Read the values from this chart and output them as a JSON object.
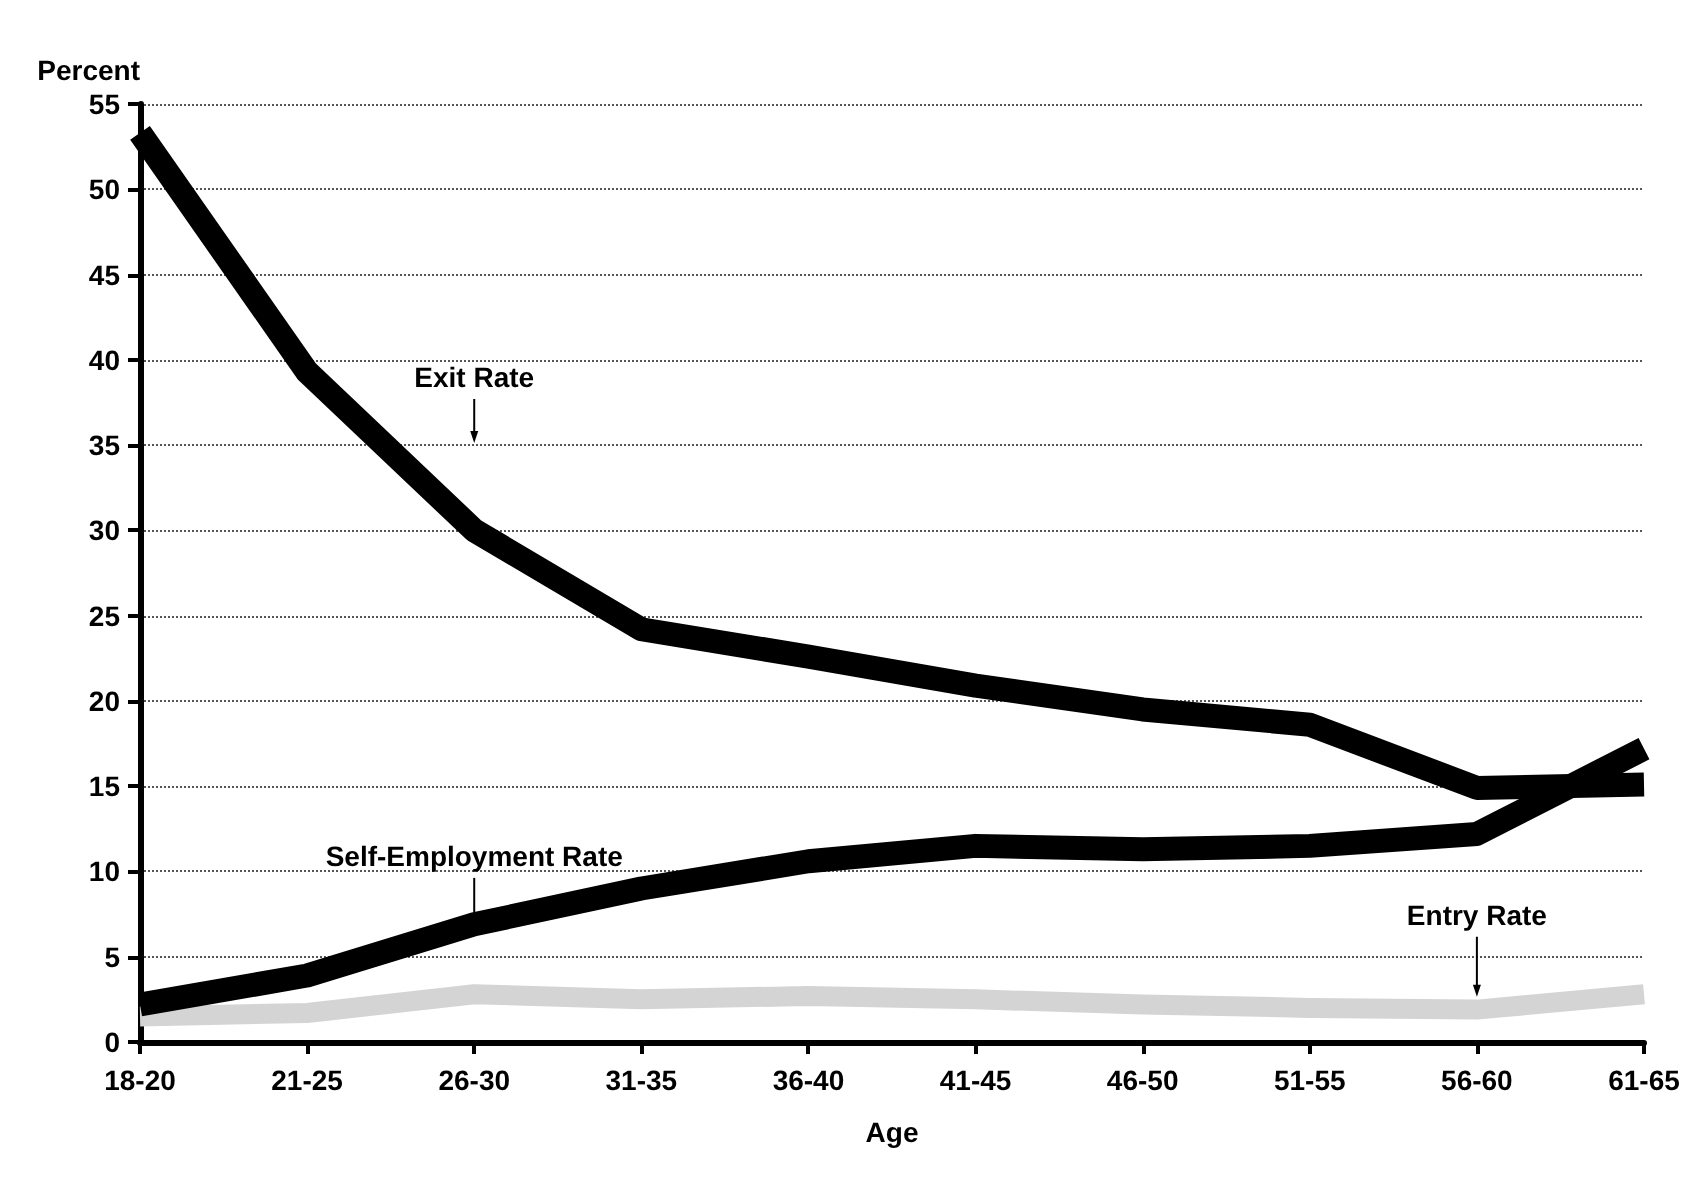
{
  "chart_data": {
    "type": "line",
    "xlabel": "Age",
    "ylabel": "Percent",
    "categories": [
      "18-20",
      "21-25",
      "26-30",
      "31-35",
      "36-40",
      "41-45",
      "46-50",
      "51-55",
      "56-60",
      "61-65"
    ],
    "series": [
      {
        "name": "Exit Rate",
        "color": "#000000",
        "values": [
          53.3,
          39.3,
          30,
          24.2,
          22.6,
          20.9,
          19.5,
          18.6,
          14.9,
          15.1
        ]
      },
      {
        "name": "Self-Employment Rate",
        "color": "#000000",
        "values": [
          2.2,
          3.9,
          6.9,
          9,
          10.6,
          11.5,
          11.3,
          11.5,
          12.2,
          17.2
        ]
      },
      {
        "name": "Entry Rate",
        "color": "#d4d4d4",
        "values": [
          1.5,
          1.7,
          2.8,
          2.5,
          2.7,
          2.5,
          2.2,
          2.0,
          1.9,
          2.8
        ]
      }
    ],
    "ylim": [
      0,
      55
    ],
    "yticks": [
      0,
      5,
      10,
      15,
      20,
      25,
      30,
      35,
      40,
      45,
      50,
      55
    ],
    "grid": "y",
    "legend": false,
    "marker": "none",
    "line_style": "solid"
  }
}
